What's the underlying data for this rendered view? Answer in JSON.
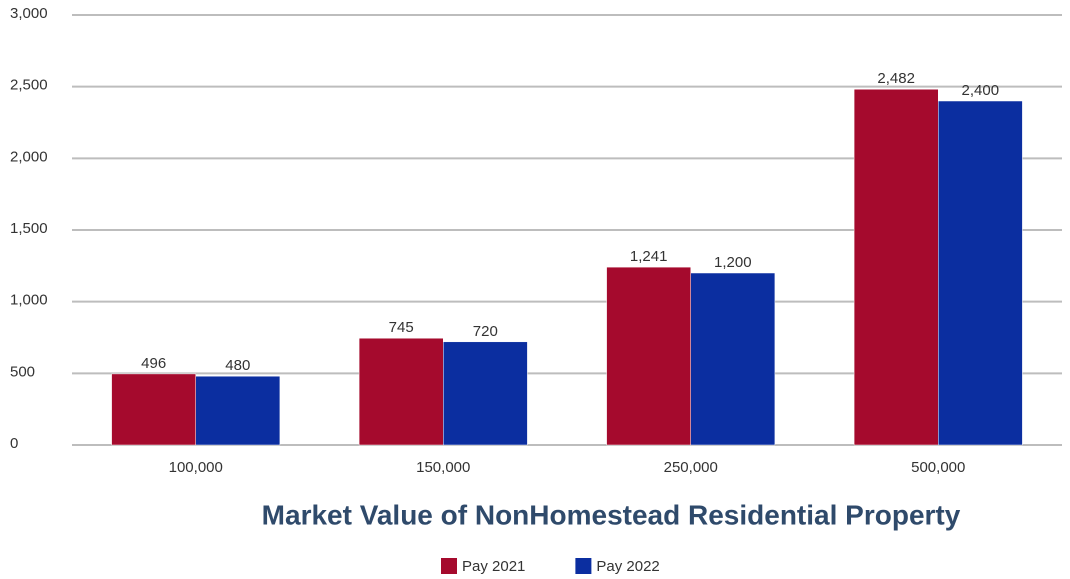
{
  "chart_data": {
    "type": "bar",
    "title": "Market Value of NonHomestead Residential Property",
    "categories": [
      "100,000",
      "150,000",
      "250,000",
      "500,000"
    ],
    "series": [
      {
        "name": "Pay 2021",
        "color": "#a50a2d",
        "values": [
          496,
          745,
          1241,
          2482
        ],
        "value_labels": [
          "496",
          "745",
          "1,241",
          "2,482"
        ]
      },
      {
        "name": "Pay 2022",
        "color": "#0b2ea0",
        "values": [
          480,
          720,
          1200,
          2400
        ],
        "value_labels": [
          "480",
          "720",
          "1,200",
          "2,400"
        ]
      }
    ],
    "ylim": [
      0,
      3000
    ],
    "yticks": [
      0,
      500,
      {
        "value": 1000,
        "label": "1,000"
      },
      {
        "value": 1500,
        "label": "1,500"
      },
      {
        "value": 2000,
        "label": "2,000"
      },
      {
        "value": 2500,
        "label": "2,500"
      },
      {
        "value": 3000,
        "label": "3,000"
      }
    ],
    "grid": true,
    "legend": "bottom"
  }
}
